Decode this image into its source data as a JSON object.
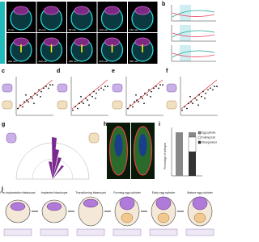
{
  "panels": {
    "a": {
      "letter": "a",
      "times": [
        "0 min",
        "40 min",
        "80 min",
        "120 min",
        "160 min",
        "200 min",
        "240 min",
        "280 min",
        "320 min",
        "360 min"
      ]
    },
    "b": {
      "letter": "b"
    },
    "c": {
      "letter": "c"
    },
    "d": {
      "letter": "d"
    },
    "e": {
      "letter": "e"
    },
    "f": {
      "letter": "f"
    },
    "g": {
      "letter": "g"
    },
    "h": {
      "letter": "h"
    },
    "i": {
      "letter": "i",
      "y_label": "Percentage of embryos",
      "legend": [
        "Egg cylinder",
        "Folding ExE",
        "Disorganised"
      ]
    },
    "j": {
      "letter": "j",
      "stages": [
        "Pre-implantation blastocyst",
        "Implanted blastocyst",
        "Transitioning blastocyst",
        "Forming egg cylinder",
        "Early egg cylinder",
        "Mature egg cylinder"
      ]
    }
  }
}
